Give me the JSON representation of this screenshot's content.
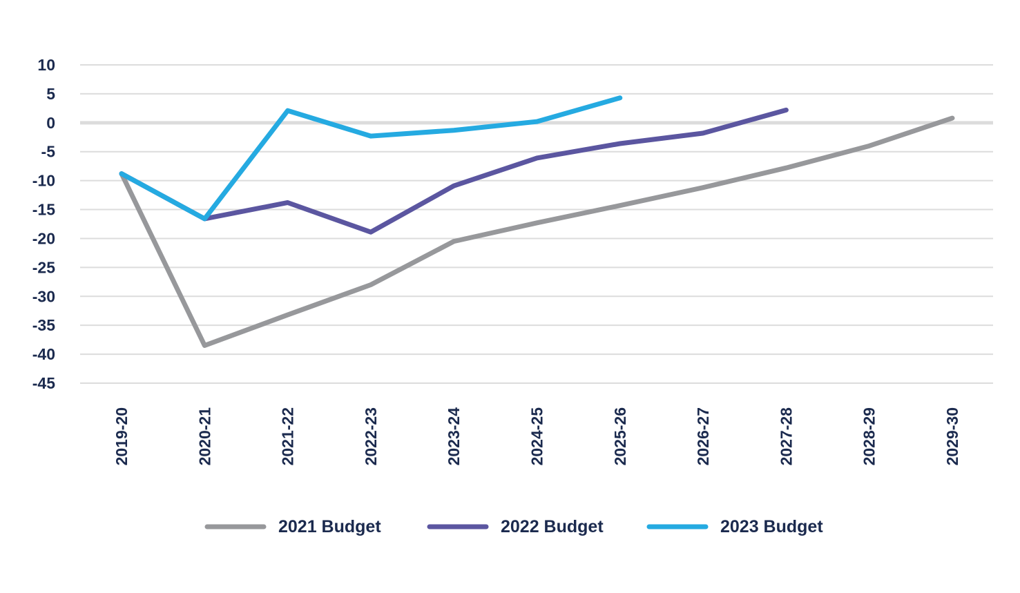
{
  "chart_data": {
    "type": "line",
    "title": "",
    "xlabel": "",
    "ylabel": "",
    "ylim": [
      -45,
      10
    ],
    "yticks": [
      10,
      5,
      0,
      -5,
      -10,
      -15,
      -20,
      -25,
      -30,
      -35,
      -40,
      -45
    ],
    "categories": [
      "2019-20",
      "2020-21",
      "2021-22",
      "2022-23",
      "2023-24",
      "2024-25",
      "2025-26",
      "2026-27",
      "2027-28",
      "2028-29",
      "2029-30"
    ],
    "legend_position": "bottom",
    "grid": true,
    "series": [
      {
        "name": "2021 Budget",
        "color": "#97989b",
        "values": [
          -8.8,
          -38.5,
          -33.2,
          -28,
          -20.5,
          -17.3,
          -14.3,
          -11.2,
          -7.8,
          -4,
          0.8
        ]
      },
      {
        "name": "2022 Budget",
        "color": "#5b56a0",
        "values": [
          -8.8,
          -16.6,
          -13.8,
          -18.9,
          -10.9,
          -6.1,
          -3.6,
          -1.8,
          2.2,
          null,
          null
        ]
      },
      {
        "name": "2023 Budget",
        "color": "#25aae1",
        "values": [
          -8.8,
          -16.6,
          2.1,
          -2.3,
          -1.3,
          0.2,
          4.3,
          null,
          null,
          null,
          null
        ]
      }
    ]
  }
}
